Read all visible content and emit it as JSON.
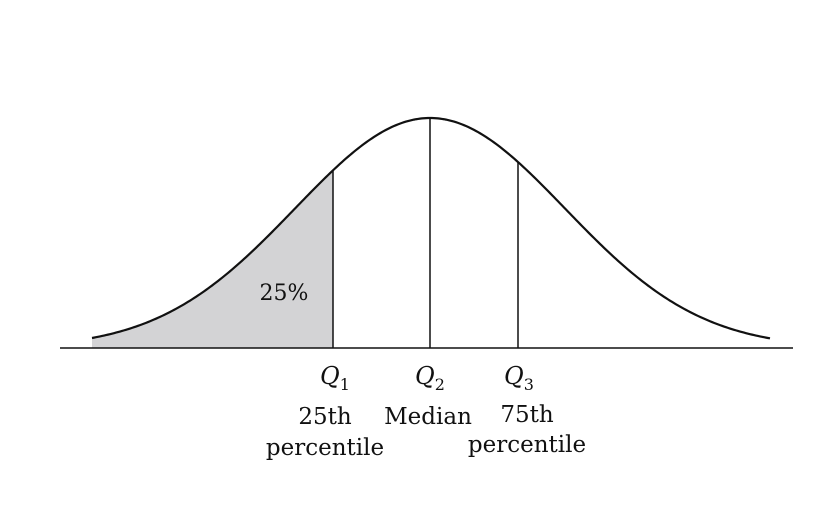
{
  "diagram": {
    "shaded_area_label": "25%",
    "quartiles": [
      {
        "symbol": "Q",
        "subscript": "1",
        "description_lines": [
          "25th",
          "percentile"
        ]
      },
      {
        "symbol": "Q",
        "subscript": "2",
        "description_lines": [
          "Median"
        ]
      },
      {
        "symbol": "Q",
        "subscript": "3",
        "description_lines": [
          "75th",
          "percentile"
        ]
      }
    ],
    "colors": {
      "curve": "#111111",
      "shade": "#d3d3d5",
      "background": "#ffffff"
    }
  }
}
